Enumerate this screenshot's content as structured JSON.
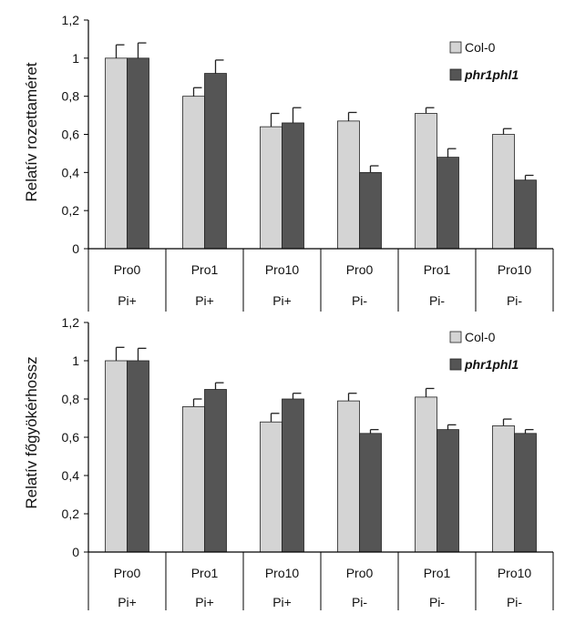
{
  "colors": {
    "col0": "#d4d4d4",
    "phr": "#555555",
    "axis": "#000000"
  },
  "chart_data": [
    {
      "type": "bar",
      "ylabel": "Relatív  rozettaméret",
      "ylim": [
        0,
        1.2
      ],
      "yticks": [
        "0",
        "0,2",
        "0,4",
        "0,6",
        "0,8",
        "1",
        "1,2"
      ],
      "categories": [
        "Pro0",
        "Pro1",
        "Pro10",
        "Pro0",
        "Pro1",
        "Pro10"
      ],
      "groups": [
        "Pi+",
        "Pi+",
        "Pi+",
        "Pi-",
        "Pi-",
        "Pi-"
      ],
      "legend_position": "top-right",
      "series": [
        {
          "name": "Col-0",
          "values": [
            1.0,
            0.8,
            0.64,
            0.67,
            0.71,
            0.6
          ],
          "errors": [
            0.07,
            0.045,
            0.07,
            0.045,
            0.03,
            0.03
          ]
        },
        {
          "name": "phr1phl1",
          "values": [
            1.0,
            0.92,
            0.66,
            0.4,
            0.48,
            0.36
          ],
          "errors": [
            0.08,
            0.07,
            0.08,
            0.035,
            0.045,
            0.025
          ]
        }
      ]
    },
    {
      "type": "bar",
      "ylabel": "Relatív főgyökérhossz",
      "ylim": [
        0,
        1.2
      ],
      "yticks": [
        "0",
        "0,2",
        "0,4",
        "0,6",
        "0,8",
        "1",
        "1,2"
      ],
      "categories": [
        "Pro0",
        "Pro1",
        "Pro10",
        "Pro0",
        "Pro1",
        "Pro10"
      ],
      "groups": [
        "Pi+",
        "Pi+",
        "Pi+",
        "Pi-",
        "Pi-",
        "Pi-"
      ],
      "legend_position": "top-right",
      "series": [
        {
          "name": "Col-0",
          "values": [
            1.0,
            0.76,
            0.68,
            0.79,
            0.81,
            0.66
          ],
          "errors": [
            0.07,
            0.04,
            0.045,
            0.04,
            0.045,
            0.035
          ]
        },
        {
          "name": "phr1phl1",
          "values": [
            1.0,
            0.85,
            0.8,
            0.62,
            0.64,
            0.62
          ],
          "errors": [
            0.065,
            0.035,
            0.03,
            0.02,
            0.025,
            0.02
          ]
        }
      ]
    }
  ]
}
